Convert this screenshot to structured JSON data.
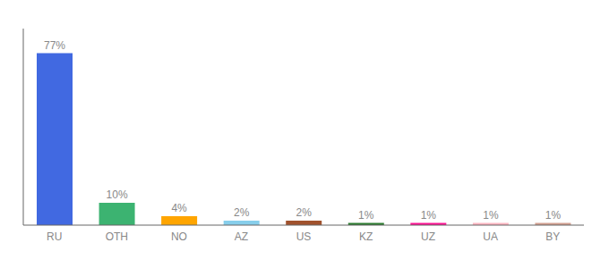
{
  "chart_data": {
    "type": "bar",
    "categories": [
      "RU",
      "OTH",
      "NO",
      "AZ",
      "US",
      "KZ",
      "UZ",
      "UA",
      "BY"
    ],
    "values": [
      77,
      10,
      4,
      2,
      2,
      1,
      1,
      1,
      1
    ],
    "value_labels": [
      "77%",
      "10%",
      "4%",
      "2%",
      "2%",
      "1%",
      "1%",
      "1%",
      "1%"
    ],
    "colors": [
      "#4169E1",
      "#3CB371",
      "#FFA500",
      "#87CEEB",
      "#A0522D",
      "#2E7D32",
      "#FF1493",
      "#FFB6C1",
      "#D2A090"
    ],
    "ylim": [
      0,
      88
    ],
    "grid": false,
    "data_labels": true,
    "tick_labels": "x"
  }
}
